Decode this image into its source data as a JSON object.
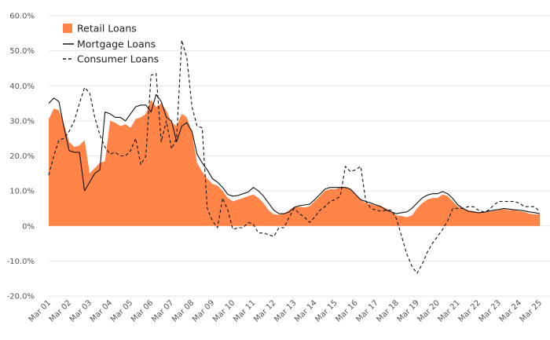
{
  "chart_data": {
    "type": "area",
    "title": "",
    "xlabel": "",
    "ylabel": "",
    "ylim": [
      -20,
      60
    ],
    "yticks": [
      "-20.0%",
      "-10.0%",
      "0%",
      "10.0%",
      "20.0%",
      "30.0%",
      "40.0%",
      "50.0%",
      "60.0%"
    ],
    "ytick_values": [
      -20,
      -10,
      0,
      10,
      20,
      30,
      40,
      50,
      60
    ],
    "xlim": [
      2001.0,
      2025.0
    ],
    "xticks": [
      "Mar 01",
      "Mar 02",
      "Mar 03",
      "Mar 04",
      "Mar 05",
      "Mar 06",
      "Mar 07",
      "Mar 08",
      "Mar 09",
      "Mar 10",
      "Mar 11",
      "Mar 12",
      "Mar 13",
      "Mar 14",
      "Mar 15",
      "Mar 16",
      "Mar 17",
      "Mar 18",
      "Mar 19",
      "Mar 20",
      "Mar 21",
      "Mar 22",
      "Mar 23",
      "Mar 24",
      "Mar 25"
    ],
    "xtick_values": [
      2001,
      2002,
      2003,
      2004,
      2005,
      2006,
      2007,
      2008,
      2009,
      2010,
      2011,
      2012,
      2013,
      2014,
      2015,
      2016,
      2017,
      2018,
      2019,
      2020,
      2021,
      2022,
      2023,
      2024,
      2025
    ],
    "grid": true,
    "legend_position": "top-left",
    "series": [
      {
        "name": "Retail Loans",
        "style": "area",
        "color": "#ff8447",
        "points": [
          [
            2001.0,
            30.5
          ],
          [
            2001.25,
            33.5
          ],
          [
            2001.5,
            33
          ],
          [
            2001.75,
            29
          ],
          [
            2002.0,
            24
          ],
          [
            2002.25,
            22.5
          ],
          [
            2002.5,
            23
          ],
          [
            2002.75,
            24.5
          ],
          [
            2003.0,
            15
          ],
          [
            2003.25,
            16.5
          ],
          [
            2003.5,
            18
          ],
          [
            2003.75,
            18.5
          ],
          [
            2004.0,
            30
          ],
          [
            2004.25,
            29.5
          ],
          [
            2004.5,
            28.5
          ],
          [
            2004.75,
            29
          ],
          [
            2005.0,
            28
          ],
          [
            2005.25,
            30.5
          ],
          [
            2005.5,
            31
          ],
          [
            2005.75,
            32
          ],
          [
            2006.0,
            36
          ],
          [
            2006.25,
            34
          ],
          [
            2006.5,
            35
          ],
          [
            2006.75,
            33
          ],
          [
            2007.0,
            29.5
          ],
          [
            2007.25,
            28.5
          ],
          [
            2007.5,
            32
          ],
          [
            2007.75,
            31
          ],
          [
            2008.0,
            26.5
          ],
          [
            2008.25,
            18
          ],
          [
            2008.5,
            15.5
          ],
          [
            2008.75,
            13.5
          ],
          [
            2009.0,
            12
          ],
          [
            2009.25,
            11.5
          ],
          [
            2009.5,
            10
          ],
          [
            2009.75,
            8
          ],
          [
            2010.0,
            7
          ],
          [
            2010.25,
            7.5
          ],
          [
            2010.5,
            8
          ],
          [
            2010.75,
            8.5
          ],
          [
            2011.0,
            9
          ],
          [
            2011.25,
            8
          ],
          [
            2011.5,
            6.5
          ],
          [
            2011.75,
            4.5
          ],
          [
            2012.0,
            3.3
          ],
          [
            2012.25,
            3.2
          ],
          [
            2012.5,
            3.5
          ],
          [
            2012.75,
            4.5
          ],
          [
            2013.0,
            5.5
          ],
          [
            2013.25,
            5.5
          ],
          [
            2013.5,
            5.3
          ],
          [
            2013.75,
            5.6
          ],
          [
            2014.0,
            7
          ],
          [
            2014.25,
            8.5
          ],
          [
            2014.5,
            10
          ],
          [
            2014.75,
            10.5
          ],
          [
            2015.0,
            10.5
          ],
          [
            2015.25,
            11
          ],
          [
            2015.5,
            11
          ],
          [
            2015.75,
            10.5
          ],
          [
            2016.0,
            9
          ],
          [
            2016.25,
            7.5
          ],
          [
            2016.5,
            6.5
          ],
          [
            2016.75,
            6.2
          ],
          [
            2017.0,
            5.8
          ],
          [
            2017.25,
            5.5
          ],
          [
            2017.5,
            5
          ],
          [
            2017.75,
            4
          ],
          [
            2018.0,
            3
          ],
          [
            2018.25,
            2.8
          ],
          [
            2018.5,
            2.5
          ],
          [
            2018.75,
            3
          ],
          [
            2019.0,
            5
          ],
          [
            2019.25,
            6.5
          ],
          [
            2019.5,
            7.5
          ],
          [
            2019.75,
            8
          ],
          [
            2020.0,
            8
          ],
          [
            2020.25,
            9
          ],
          [
            2020.5,
            8.5
          ],
          [
            2020.75,
            7
          ],
          [
            2021.0,
            5.5
          ],
          [
            2021.25,
            5
          ],
          [
            2021.5,
            4.5
          ],
          [
            2021.75,
            4.2
          ],
          [
            2022.0,
            3.8
          ],
          [
            2022.25,
            3.8
          ],
          [
            2022.5,
            4
          ],
          [
            2022.75,
            4.3
          ],
          [
            2023.0,
            4.5
          ],
          [
            2023.25,
            4.8
          ],
          [
            2023.5,
            4.5
          ],
          [
            2023.75,
            4.5
          ],
          [
            2024.0,
            4.2
          ],
          [
            2024.25,
            4
          ],
          [
            2024.5,
            3.5
          ],
          [
            2024.75,
            3.3
          ],
          [
            2025.0,
            3.3
          ]
        ]
      },
      {
        "name": "Mortgage Loans",
        "style": "line",
        "color": "#111111",
        "points": [
          [
            2001.0,
            35
          ],
          [
            2001.25,
            36.5
          ],
          [
            2001.5,
            35.5
          ],
          [
            2001.75,
            28
          ],
          [
            2002.0,
            21.5
          ],
          [
            2002.25,
            21
          ],
          [
            2002.5,
            21
          ],
          [
            2002.75,
            10
          ],
          [
            2003.0,
            12.5
          ],
          [
            2003.25,
            15
          ],
          [
            2003.5,
            16
          ],
          [
            2003.75,
            32.5
          ],
          [
            2004.0,
            32
          ],
          [
            2004.25,
            31
          ],
          [
            2004.5,
            31
          ],
          [
            2004.75,
            30
          ],
          [
            2005.0,
            32
          ],
          [
            2005.25,
            34
          ],
          [
            2005.5,
            34.5
          ],
          [
            2005.75,
            34.5
          ],
          [
            2006.0,
            32.5
          ],
          [
            2006.25,
            37.5
          ],
          [
            2006.5,
            35.5
          ],
          [
            2006.75,
            31
          ],
          [
            2007.0,
            30
          ],
          [
            2007.25,
            24
          ],
          [
            2007.5,
            28.5
          ],
          [
            2007.75,
            29.5
          ],
          [
            2008.0,
            27
          ],
          [
            2008.25,
            20.5
          ],
          [
            2008.5,
            18
          ],
          [
            2008.75,
            16
          ],
          [
            2009.0,
            13.5
          ],
          [
            2009.25,
            12.5
          ],
          [
            2009.5,
            11
          ],
          [
            2009.75,
            9
          ],
          [
            2010.0,
            8.5
          ],
          [
            2010.25,
            8.7
          ],
          [
            2010.5,
            9.2
          ],
          [
            2010.75,
            9.7
          ],
          [
            2011.0,
            11
          ],
          [
            2011.25,
            10
          ],
          [
            2011.5,
            8.5
          ],
          [
            2011.75,
            6.5
          ],
          [
            2012.0,
            4.5
          ],
          [
            2012.25,
            3.5
          ],
          [
            2012.5,
            3.5
          ],
          [
            2012.75,
            4
          ],
          [
            2013.0,
            5.3
          ],
          [
            2013.25,
            5.8
          ],
          [
            2013.5,
            6
          ],
          [
            2013.75,
            6.2
          ],
          [
            2014.0,
            7.5
          ],
          [
            2014.25,
            9
          ],
          [
            2014.5,
            10.5
          ],
          [
            2014.75,
            11
          ],
          [
            2015.0,
            11
          ],
          [
            2015.25,
            11
          ],
          [
            2015.5,
            11
          ],
          [
            2015.75,
            10.5
          ],
          [
            2016.0,
            9
          ],
          [
            2016.25,
            7.5
          ],
          [
            2016.5,
            7
          ],
          [
            2016.75,
            6.5
          ],
          [
            2017.0,
            6
          ],
          [
            2017.25,
            5.5
          ],
          [
            2017.5,
            4.5
          ],
          [
            2017.75,
            4
          ],
          [
            2018.0,
            3.5
          ],
          [
            2018.25,
            3.8
          ],
          [
            2018.5,
            4
          ],
          [
            2018.75,
            5
          ],
          [
            2019.0,
            6.5
          ],
          [
            2019.25,
            8
          ],
          [
            2019.5,
            8.8
          ],
          [
            2019.75,
            9.2
          ],
          [
            2020.0,
            9.2
          ],
          [
            2020.25,
            9.8
          ],
          [
            2020.5,
            9.2
          ],
          [
            2020.75,
            7.8
          ],
          [
            2021.0,
            6
          ],
          [
            2021.25,
            5
          ],
          [
            2021.5,
            4.2
          ],
          [
            2021.75,
            4
          ],
          [
            2022.0,
            3.8
          ],
          [
            2022.25,
            3.9
          ],
          [
            2022.5,
            4.2
          ],
          [
            2022.75,
            4.5
          ],
          [
            2023.0,
            4.7
          ],
          [
            2023.25,
            5
          ],
          [
            2023.5,
            4.8
          ],
          [
            2023.75,
            4.6
          ],
          [
            2024.0,
            4.5
          ],
          [
            2024.25,
            4.3
          ],
          [
            2024.5,
            4
          ],
          [
            2024.75,
            3.8
          ],
          [
            2025.0,
            3.5
          ]
        ]
      },
      {
        "name": "Consumer Loans",
        "style": "dashed",
        "color": "#111111",
        "points": [
          [
            2001.0,
            14.5
          ],
          [
            2001.25,
            20
          ],
          [
            2001.5,
            24.5
          ],
          [
            2001.75,
            25
          ],
          [
            2002.0,
            27
          ],
          [
            2002.25,
            30
          ],
          [
            2002.5,
            35
          ],
          [
            2002.75,
            39.5
          ],
          [
            2003.0,
            38
          ],
          [
            2003.25,
            31
          ],
          [
            2003.5,
            26
          ],
          [
            2003.75,
            22.5
          ],
          [
            2004.0,
            20.5
          ],
          [
            2004.25,
            21
          ],
          [
            2004.5,
            20
          ],
          [
            2004.75,
            20
          ],
          [
            2005.0,
            21.5
          ],
          [
            2005.25,
            25
          ],
          [
            2005.5,
            17.5
          ],
          [
            2005.75,
            20
          ],
          [
            2006.0,
            43
          ],
          [
            2006.25,
            43.5
          ],
          [
            2006.5,
            24
          ],
          [
            2006.75,
            30
          ],
          [
            2007.0,
            22
          ],
          [
            2007.25,
            25
          ],
          [
            2007.5,
            53
          ],
          [
            2007.75,
            48
          ],
          [
            2008.0,
            34
          ],
          [
            2008.25,
            28.5
          ],
          [
            2008.5,
            28
          ],
          [
            2008.75,
            5
          ],
          [
            2009.0,
            1.5
          ],
          [
            2009.25,
            -0.5
          ],
          [
            2009.5,
            8
          ],
          [
            2009.75,
            4.5
          ],
          [
            2010.0,
            -1
          ],
          [
            2010.25,
            -0.5
          ],
          [
            2010.5,
            -0.5
          ],
          [
            2010.75,
            1
          ],
          [
            2011.0,
            0.5
          ],
          [
            2011.25,
            -2
          ],
          [
            2011.5,
            -2
          ],
          [
            2011.75,
            -2.5
          ],
          [
            2012.0,
            -3
          ],
          [
            2012.25,
            -0.5
          ],
          [
            2012.5,
            -0.5
          ],
          [
            2012.75,
            2.5
          ],
          [
            2013.0,
            5
          ],
          [
            2013.25,
            3.5
          ],
          [
            2013.5,
            2.5
          ],
          [
            2013.75,
            1
          ],
          [
            2014.0,
            2.5
          ],
          [
            2014.25,
            4.5
          ],
          [
            2014.5,
            5.5
          ],
          [
            2014.75,
            7
          ],
          [
            2015.0,
            7.5
          ],
          [
            2015.25,
            8.5
          ],
          [
            2015.5,
            17
          ],
          [
            2015.75,
            15.5
          ],
          [
            2016.0,
            16
          ],
          [
            2016.25,
            17
          ],
          [
            2016.5,
            7
          ],
          [
            2016.75,
            5
          ],
          [
            2017.0,
            4.5
          ],
          [
            2017.25,
            4.2
          ],
          [
            2017.5,
            4.5
          ],
          [
            2017.75,
            4.5
          ],
          [
            2018.0,
            2
          ],
          [
            2018.25,
            -3
          ],
          [
            2018.5,
            -8
          ],
          [
            2018.75,
            -11.5
          ],
          [
            2019.0,
            -13.5
          ],
          [
            2019.25,
            -11
          ],
          [
            2019.5,
            -7.5
          ],
          [
            2019.75,
            -5
          ],
          [
            2020.0,
            -3
          ],
          [
            2020.25,
            -1
          ],
          [
            2020.5,
            1.5
          ],
          [
            2020.75,
            5
          ],
          [
            2021.0,
            5
          ],
          [
            2021.25,
            5
          ],
          [
            2021.5,
            5.5
          ],
          [
            2021.75,
            5.5
          ],
          [
            2022.0,
            4.5
          ],
          [
            2022.25,
            4
          ],
          [
            2022.5,
            4.5
          ],
          [
            2022.75,
            6
          ],
          [
            2023.0,
            7
          ],
          [
            2023.25,
            7
          ],
          [
            2023.5,
            7
          ],
          [
            2023.75,
            7
          ],
          [
            2024.0,
            6.5
          ],
          [
            2024.25,
            5.5
          ],
          [
            2024.5,
            5.5
          ],
          [
            2024.75,
            5.5
          ],
          [
            2025.0,
            4
          ]
        ]
      }
    ]
  }
}
